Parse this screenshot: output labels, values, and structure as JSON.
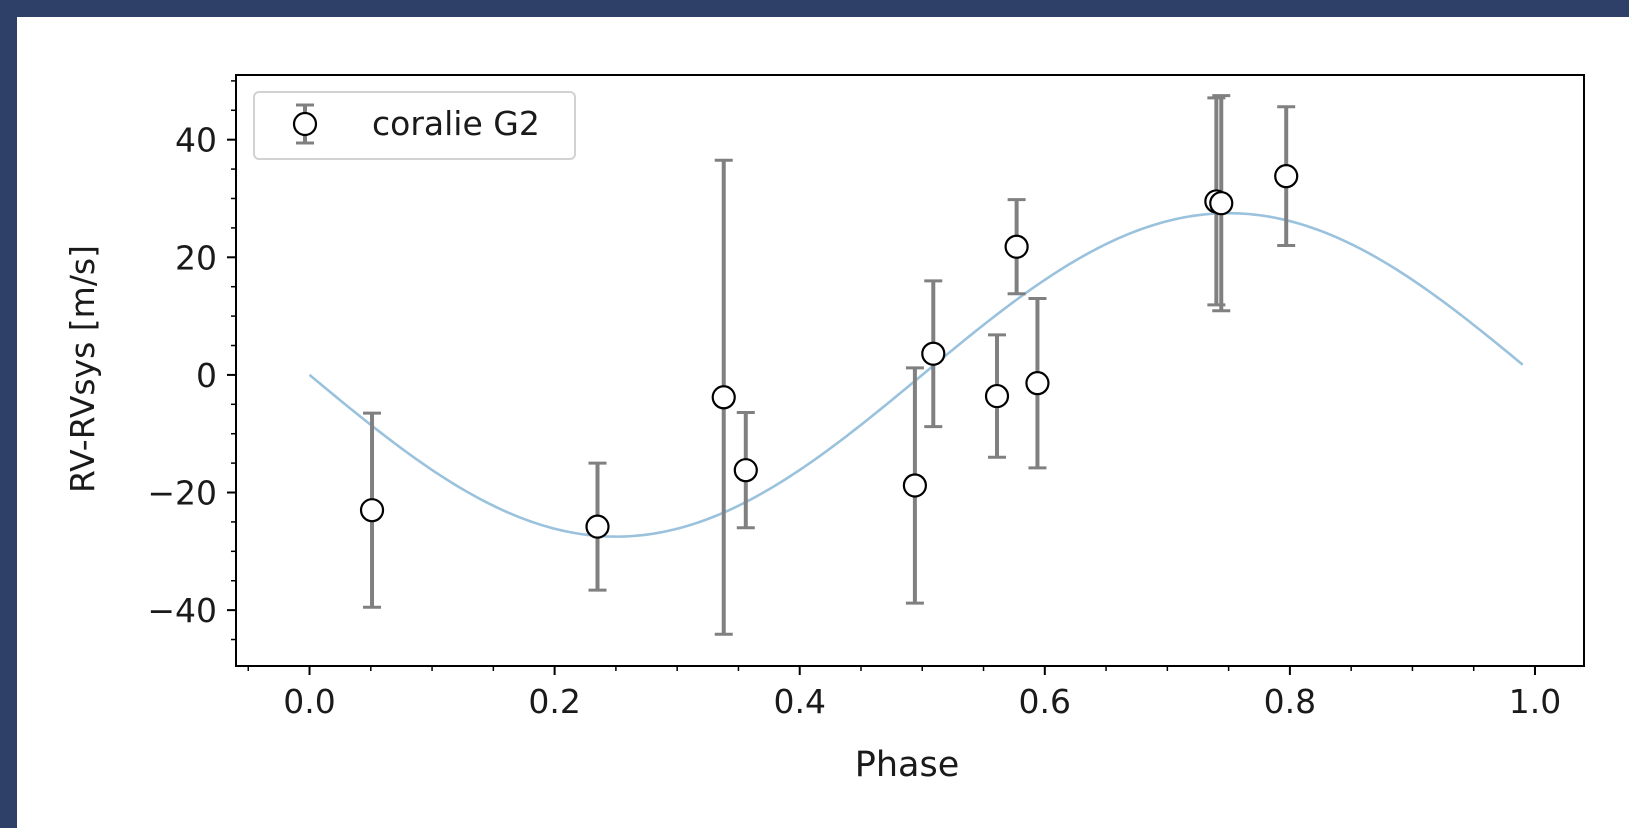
{
  "colors": {
    "frame": "#2e4068",
    "background": "#ffffff",
    "axes": "#000000",
    "model_line": "#1f77b4",
    "error_bar": "#808080",
    "marker_face": "#ffffff",
    "marker_edge": "#000000"
  },
  "chart_data": {
    "type": "scatter",
    "title": "",
    "xlabel": "Phase",
    "ylabel": "RV-RVsys [m/s]",
    "xlim": [
      -0.06,
      1.04
    ],
    "ylim": [
      -49.5,
      51
    ],
    "x_ticks": [
      0.0,
      0.2,
      0.4,
      0.6,
      0.8,
      1.0
    ],
    "x_tick_labels": [
      "0.0",
      "0.2",
      "0.4",
      "0.6",
      "0.8",
      "1.0"
    ],
    "y_ticks": [
      -40,
      -20,
      0,
      20,
      40
    ],
    "y_tick_labels": [
      "−40",
      "−20",
      "0",
      "20",
      "40"
    ],
    "grid": false,
    "legend": {
      "placement": "upper-left",
      "entries": [
        "coralie G2"
      ]
    },
    "series": [
      {
        "name": "coralie G2",
        "kind": "errorbar",
        "points": [
          {
            "x": 0.051,
            "y": -23.0,
            "err": 16.5
          },
          {
            "x": 0.235,
            "y": -25.8,
            "err": 10.8
          },
          {
            "x": 0.338,
            "y": -3.8,
            "err": 40.3
          },
          {
            "x": 0.356,
            "y": -16.2,
            "err": 9.8
          },
          {
            "x": 0.494,
            "y": -18.8,
            "err": 20.0
          },
          {
            "x": 0.509,
            "y": 3.6,
            "err": 12.4
          },
          {
            "x": 0.561,
            "y": -3.6,
            "err": 10.4
          },
          {
            "x": 0.577,
            "y": 21.8,
            "err": 8.0
          },
          {
            "x": 0.594,
            "y": -1.4,
            "err": 14.4
          },
          {
            "x": 0.74,
            "y": 29.5,
            "err": 17.6
          },
          {
            "x": 0.744,
            "y": 29.2,
            "err": 18.3
          },
          {
            "x": 0.797,
            "y": 33.8,
            "err": 11.8
          }
        ]
      },
      {
        "kind": "model",
        "curve": "sinusoid",
        "amplitude": 27.5,
        "phase_offset": 0.0,
        "x_range": [
          0.0,
          0.99
        ]
      }
    ]
  }
}
